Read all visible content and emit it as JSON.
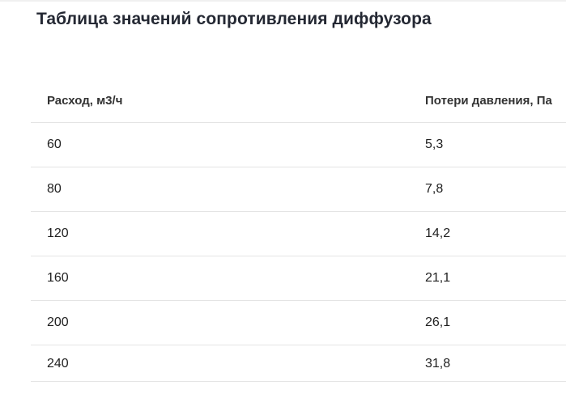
{
  "page": {
    "title": "Таблица значений сопротивления диффузора"
  },
  "table": {
    "columns": [
      "Расход, м3/ч",
      "Потери давления, Па"
    ],
    "rows": [
      [
        "60",
        "5,3"
      ],
      [
        "80",
        "7,8"
      ],
      [
        "120",
        "14,2"
      ],
      [
        "160",
        "21,1"
      ],
      [
        "200",
        "26,1"
      ],
      [
        "240",
        "31,8"
      ]
    ]
  },
  "colors": {
    "title_text": "#242833",
    "header_text": "#333333",
    "cell_text": "#212121",
    "divider": "#e4e4e4",
    "background": "#ffffff",
    "top_border": "#f0f0f0"
  }
}
